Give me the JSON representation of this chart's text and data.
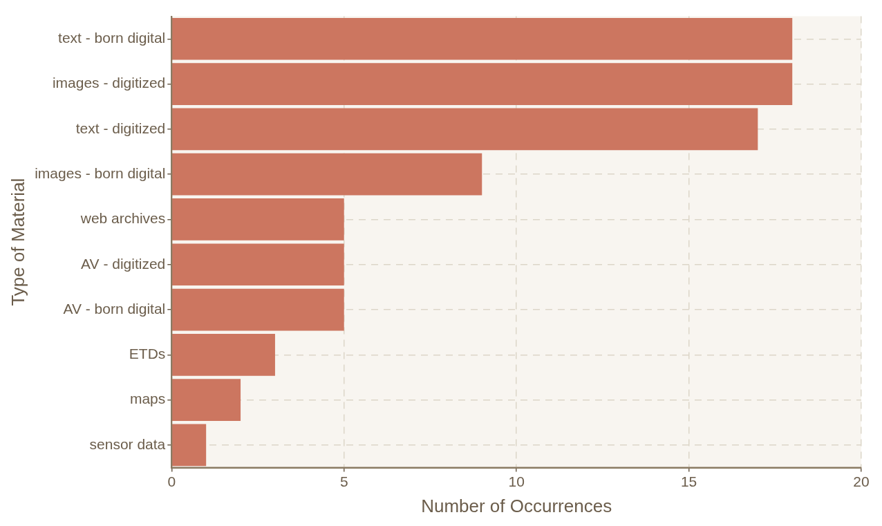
{
  "chart_data": {
    "type": "bar",
    "orientation": "horizontal",
    "xlabel": "Number of Occurrences",
    "ylabel": "Type of Material",
    "categories": [
      "text - born digital",
      "images - digitized",
      "text - digitized",
      "images - born digital",
      "web archives",
      "AV - digitized",
      "AV - born digital",
      "ETDs",
      "maps",
      "sensor data"
    ],
    "values": [
      18,
      18,
      17,
      9,
      5,
      5,
      5,
      3,
      2,
      1
    ],
    "color": "#cc7660",
    "xlim": [
      0,
      20
    ],
    "xticks": [
      0,
      5,
      10,
      15,
      20
    ],
    "grid": true,
    "legend": false
  }
}
